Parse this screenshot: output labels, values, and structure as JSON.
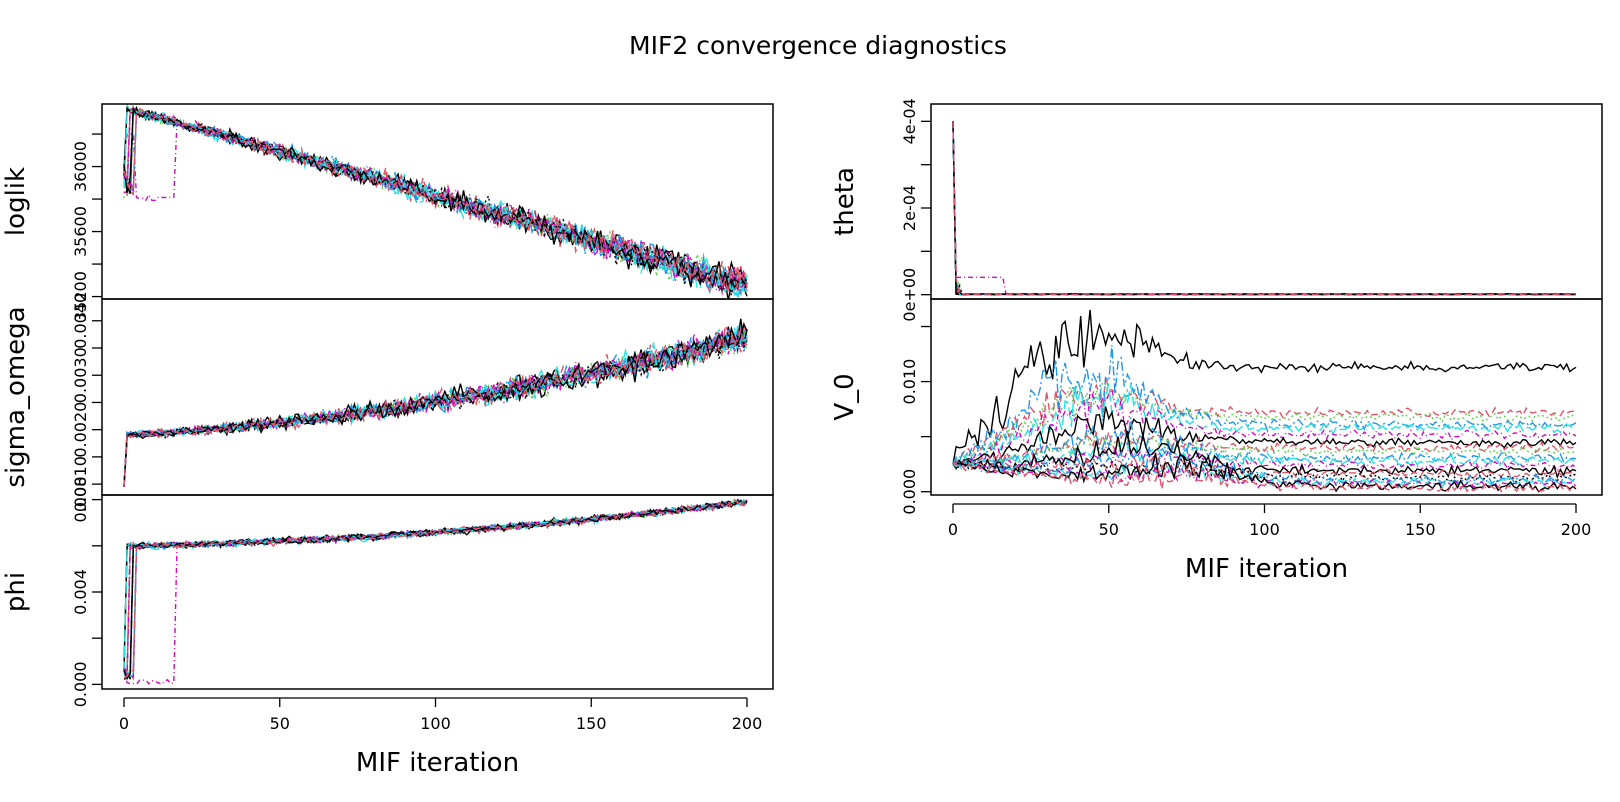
{
  "title": "MIF2 convergence diagnostics",
  "palette": [
    "#000000",
    "#DF536B",
    "#61D04F",
    "#2297E6",
    "#28E2E5",
    "#CD0BBC",
    "#F5C710",
    "#9E9E9E"
  ],
  "chart_data": [
    {
      "type": "line",
      "ylabel": "loglik",
      "xlim": [
        0,
        200
      ],
      "ylim": [
        35185,
        36385
      ],
      "yticks": [
        35200,
        35400,
        35600,
        35800,
        36000,
        36200
      ],
      "ytick_labels": [
        "35200",
        "",
        "35600",
        "",
        "36000",
        ""
      ],
      "series_summary": {
        "n_chains": 20,
        "start": 35930,
        "peak": {
          "x": 3,
          "y": 36345
        },
        "end_range": [
          35235,
          35345
        ],
        "slow_chain_dip": {
          "x": [
            4,
            16
          ],
          "y": 35810
        }
      }
    },
    {
      "type": "line",
      "ylabel": "sigma_omega",
      "xlim": [
        0,
        200
      ],
      "ylim": [
        0.0008,
        0.0044
      ],
      "yticks": [
        0.001,
        0.0015,
        0.002,
        0.0025,
        0.003,
        0.0035,
        0.004
      ],
      "ytick_labels": [
        "0.0010",
        "",
        "0.0020",
        "",
        "0.0030",
        "",
        "0.0040"
      ],
      "series_summary": {
        "n_chains": 20,
        "start": 0.00095,
        "after_jump": 0.0019,
        "end": 0.0037
      }
    },
    {
      "type": "line",
      "ylabel": "phi",
      "xlabel": "MIF iteration",
      "xlim": [
        0,
        200
      ],
      "xticks": [
        0,
        50,
        100,
        150,
        200
      ],
      "ylim": [
        -0.0002,
        0.0082
      ],
      "yticks": [
        0,
        0.002,
        0.004,
        0.006,
        0.008
      ],
      "ytick_labels": [
        "0.000",
        "",
        "0.004",
        "",
        "0.008"
      ],
      "series_summary": {
        "n_chains": 20,
        "start": 0.0002,
        "plateau": 0.006,
        "end": 0.0079,
        "slow_chain_dip": {
          "x": [
            4,
            16
          ],
          "y": 0.0
        }
      }
    },
    {
      "type": "line",
      "ylabel": "theta",
      "xlim": [
        0,
        200
      ],
      "ylim": [
        -1e-05,
        0.00044
      ],
      "yticks": [
        0,
        0.0001,
        0.0002,
        0.0003,
        0.0004
      ],
      "ytick_labels": [
        "0e+00",
        "",
        "2e-04",
        "",
        "4e-04"
      ],
      "series_summary": {
        "n_chains": 20,
        "start": 0.0004,
        "settled": 2e-06,
        "slow_chain_plateau": {
          "x": [
            2,
            16
          ],
          "y": 4e-05
        }
      }
    },
    {
      "type": "line",
      "ylabel": "V_0",
      "xlabel": "MIF iteration",
      "xlim": [
        0,
        200
      ],
      "xticks": [
        0,
        50,
        100,
        150,
        200
      ],
      "ylim": [
        -0.0003,
        0.0175
      ],
      "yticks": [
        0,
        0.005,
        0.01,
        0.015
      ],
      "ytick_labels": [
        "0.000",
        "",
        "0.010",
        ""
      ],
      "series_summary": {
        "n_chains": 20,
        "start": 0.0025,
        "final_values": [
          0.0113,
          0.0072,
          0.0068,
          0.0061,
          0.0058,
          0.0052,
          0.0045,
          0.004,
          0.0037,
          0.0031,
          0.0028,
          0.0024,
          0.0019,
          0.0016,
          0.0013,
          0.0011,
          0.0009,
          0.0007,
          0.0005,
          0.0003
        ]
      }
    }
  ]
}
